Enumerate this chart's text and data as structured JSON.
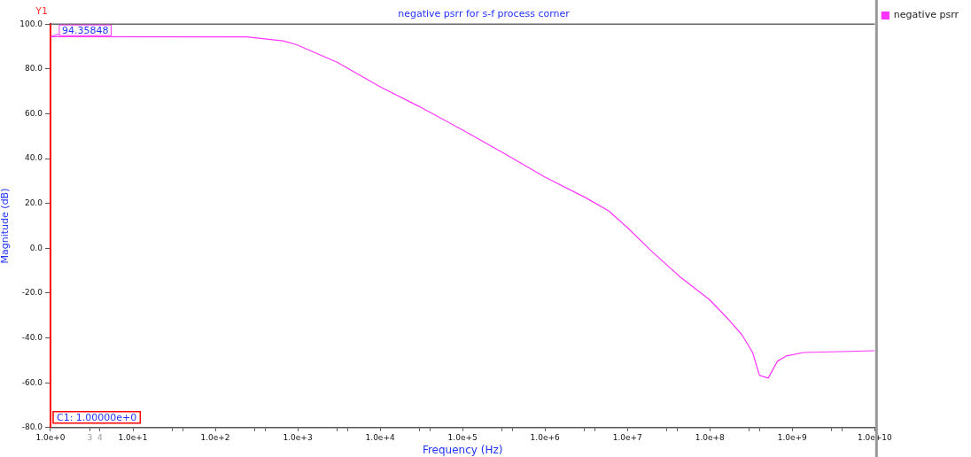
{
  "chart_data": {
    "type": "line",
    "title": "negative psrr for s-f process corner",
    "xlabel": "Frequency (Hz)",
    "ylabel": "Magnitude (dB)",
    "log": "x",
    "xlim": [
      1,
      10000000000
    ],
    "xticks": [
      {
        "value": 1,
        "label": "1.0e+0"
      },
      {
        "value": 3,
        "label": "3"
      },
      {
        "value": 4,
        "label": "4"
      },
      {
        "value": 10,
        "label": "1.0e+1"
      },
      {
        "value": 30,
        "label": null
      },
      {
        "value": 40,
        "label": null
      },
      {
        "value": 100,
        "label": "1.0e+2"
      },
      {
        "value": 300,
        "label": null
      },
      {
        "value": 400,
        "label": null
      },
      {
        "value": 1000,
        "label": "1.0e+3"
      },
      {
        "value": 3000,
        "label": null
      },
      {
        "value": 4000,
        "label": null
      },
      {
        "value": 10000,
        "label": "1.0e+4"
      },
      {
        "value": 30000,
        "label": null
      },
      {
        "value": 40000,
        "label": null
      },
      {
        "value": 100000,
        "label": "1.0e+5"
      },
      {
        "value": 300000,
        "label": null
      },
      {
        "value": 400000,
        "label": null
      },
      {
        "value": 1000000,
        "label": "1.0e+6"
      },
      {
        "value": 3000000,
        "label": null
      },
      {
        "value": 4000000,
        "label": null
      },
      {
        "value": 10000000,
        "label": "1.0e+7"
      },
      {
        "value": 30000000,
        "label": null
      },
      {
        "value": 40000000,
        "label": null
      },
      {
        "value": 100000000,
        "label": "1.0e+8"
      },
      {
        "value": 300000000,
        "label": null
      },
      {
        "value": 400000000,
        "label": null
      },
      {
        "value": 1000000000,
        "label": "1.0e+9"
      },
      {
        "value": 3000000000,
        "label": null
      },
      {
        "value": 4000000000,
        "label": null
      },
      {
        "value": 10000000000,
        "label": "1.0e+10"
      }
    ],
    "ylim": [
      -80,
      100
    ],
    "yticks": [
      {
        "value": -80,
        "label": "-80.0"
      },
      {
        "value": -60,
        "label": "-60.0"
      },
      {
        "value": -40,
        "label": "-40.0"
      },
      {
        "value": -20,
        "label": "-20.0"
      },
      {
        "value": 0,
        "label": "0.0"
      },
      {
        "value": 20,
        "label": "20.0"
      },
      {
        "value": 40,
        "label": "40.0"
      },
      {
        "value": 60,
        "label": "60.0"
      },
      {
        "value": 80,
        "label": "80.0"
      },
      {
        "value": 100,
        "label": "100.0"
      }
    ],
    "grid": false,
    "legend": "top right",
    "marker": "none",
    "line_style": "solid",
    "series": [
      {
        "name": "negative psrr",
        "color": "#ff33ff",
        "x": [
          1,
          240,
          660,
          955,
          3000,
          10000,
          29500,
          102000,
          316000,
          1000000,
          3100000,
          5900000,
          10000000,
          20400000,
          44000000,
          98000000,
          166000000,
          245000000,
          330000000,
          400000000,
          510000000,
          660000000,
          850000000,
          1380000000,
          3800000000,
          10000000000
        ],
        "values": [
          94.4,
          94.3,
          92.5,
          90.9,
          83,
          72,
          63.3,
          52.6,
          42.4,
          31.7,
          22.6,
          16.7,
          9.2,
          -1.9,
          -12.9,
          -22.8,
          -31.5,
          -38.6,
          -46.5,
          -56.7,
          -57.9,
          -50.4,
          -48,
          -46.5,
          -46.1,
          -45.7
        ]
      }
    ],
    "annotations": [
      {
        "text": "94.35848",
        "x": 1,
        "y": 94.35848
      },
      "Y1",
      "C1: 1.00000e+0"
    ]
  }
}
